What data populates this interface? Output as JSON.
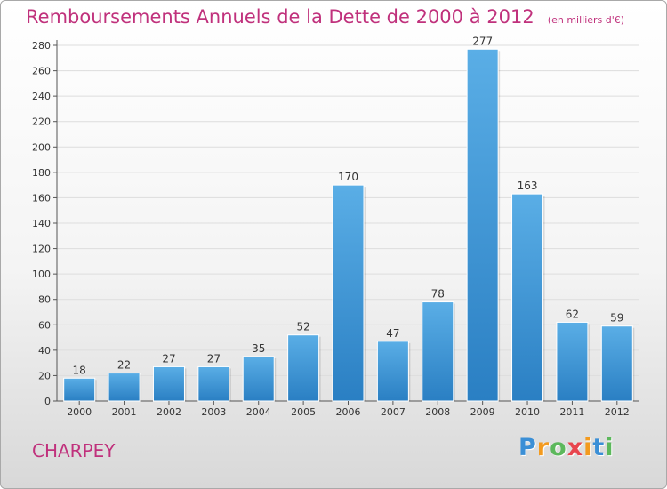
{
  "chart_data": {
    "type": "bar",
    "title": "Remboursements Annuels de la Dette de 2000 à 2012",
    "subtitle": "(en milliers d'€)",
    "categories": [
      "2000",
      "2001",
      "2002",
      "2003",
      "2004",
      "2005",
      "2006",
      "2007",
      "2008",
      "2009",
      "2010",
      "2011",
      "2012"
    ],
    "values": [
      18,
      22,
      27,
      27,
      35,
      52,
      170,
      47,
      78,
      277,
      163,
      62,
      59
    ],
    "ylim": [
      0,
      280
    ],
    "yticks": [
      "0",
      "20",
      "40",
      "60",
      "80",
      "100",
      "120",
      "140",
      "160",
      "180",
      "200",
      "220",
      "240",
      "260",
      "280"
    ],
    "grid": true,
    "bar_color_top": "#5aaee6",
    "bar_color_bottom": "#2a7fc3"
  },
  "location": "CHARPEY",
  "logo": {
    "letters": [
      "P",
      "r",
      "o",
      "x",
      "i",
      "t",
      "i"
    ],
    "colors": [
      "#3b8fd6",
      "#f39a1e",
      "#5cb85c",
      "#e8454e",
      "#f39a1e",
      "#3b8fd6",
      "#5cb85c"
    ]
  }
}
